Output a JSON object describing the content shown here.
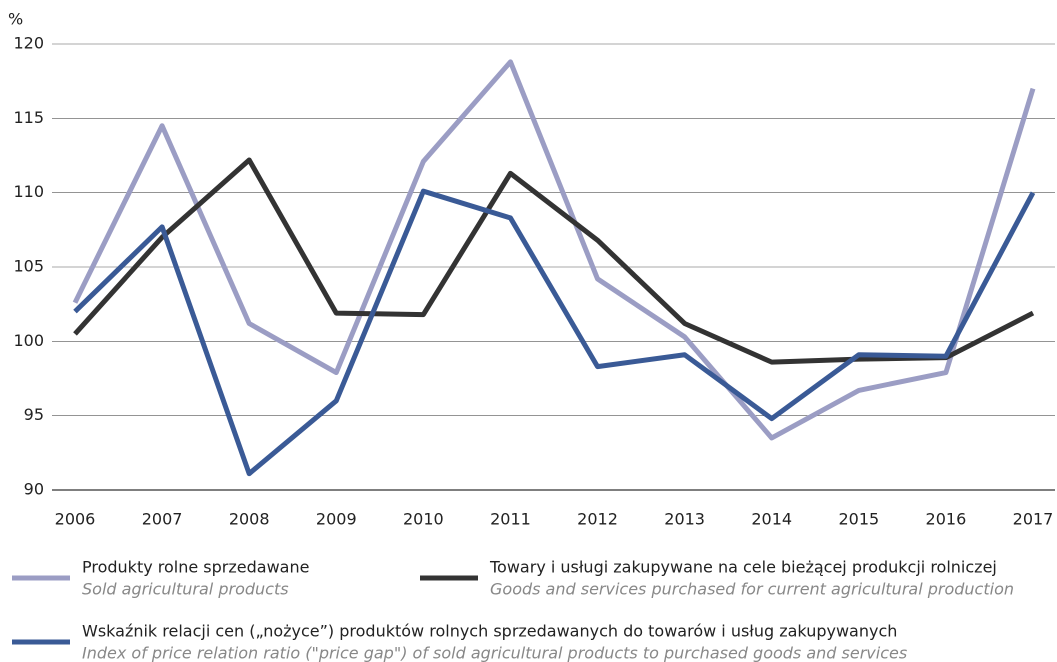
{
  "chart_data": {
    "type": "line",
    "y_label": "%",
    "categories": [
      "2006",
      "2007",
      "2008",
      "2009",
      "2010",
      "2011",
      "2012",
      "2013",
      "2014",
      "2015",
      "2016",
      "2017"
    ],
    "ylim": [
      90,
      120
    ],
    "yticks": [
      90,
      95,
      100,
      105,
      110,
      115,
      120
    ],
    "grid": true,
    "series": [
      {
        "name": "Produkty rolne sprzedawane",
        "subname": "Sold agricultural products",
        "color": "#9b9dc4",
        "values": [
          102.6,
          114.5,
          101.2,
          97.9,
          112.1,
          118.8,
          104.2,
          100.3,
          93.5,
          96.7,
          97.9,
          117.0
        ]
      },
      {
        "name": "Towary i usługi zakupywane na cele bieżącej produkcji rolniczej",
        "subname": "Goods and services purchased for current agricultural production",
        "color": "#333333",
        "values": [
          100.5,
          107.0,
          112.2,
          101.9,
          101.8,
          111.3,
          106.8,
          101.2,
          98.6,
          98.8,
          98.9,
          101.9
        ]
      },
      {
        "name": "Wskaźnik relacji cen („nożyce”) produktów rolnych sprzedawanych do towarów i usług zakupywanych",
        "subname": "Index of price relation ratio (\"price gap\") of sold agricultural products to purchased goods and services",
        "color": "#3a5a96",
        "values": [
          102.0,
          107.7,
          91.1,
          96.0,
          110.1,
          108.3,
          98.3,
          99.1,
          94.8,
          99.1,
          99.0,
          110.0
        ]
      }
    ]
  }
}
